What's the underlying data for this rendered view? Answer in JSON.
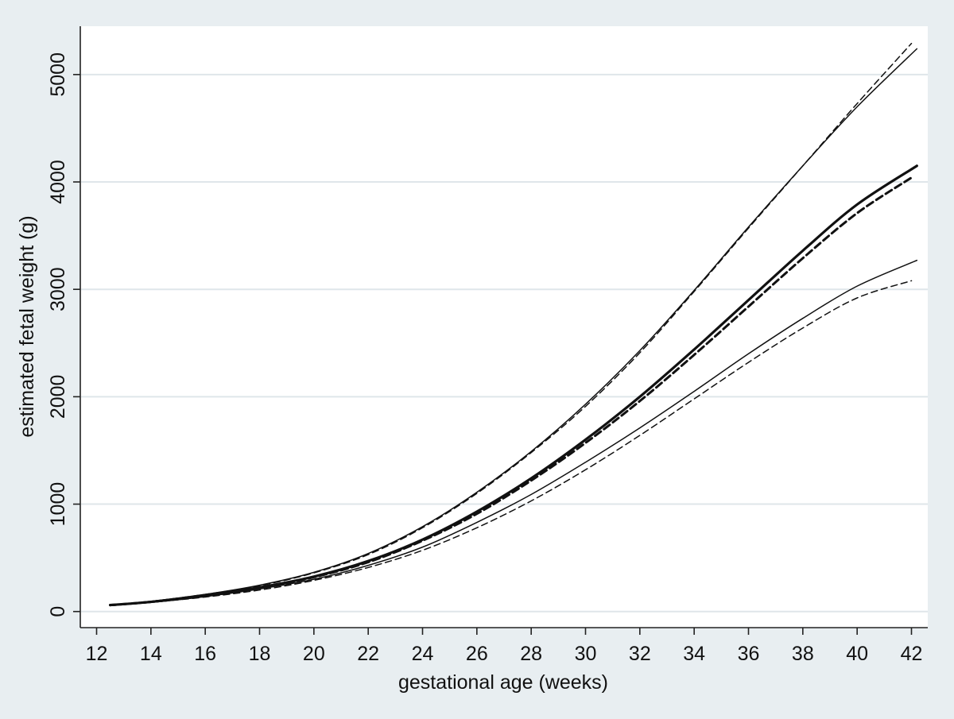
{
  "chart_data": {
    "type": "line",
    "title": "",
    "xlabel": "gestational age (weeks)",
    "ylabel": "estimated fetal weight (g)",
    "xlim": [
      11.4,
      42.6
    ],
    "ylim": [
      -150,
      5450
    ],
    "xticks": [
      12,
      14,
      16,
      18,
      20,
      22,
      24,
      26,
      28,
      30,
      32,
      34,
      36,
      38,
      40,
      42
    ],
    "xtick_labels": [
      "12",
      "14",
      "16",
      "18",
      "20",
      "22",
      "24",
      "26",
      "28",
      "30",
      "32",
      "34",
      "36",
      "38",
      "40",
      "42"
    ],
    "yticks": [
      0,
      1000,
      2000,
      3000,
      4000,
      5000
    ],
    "ytick_labels": [
      "0",
      "1000",
      "2000",
      "3000",
      "4000",
      "5000"
    ],
    "grid": true,
    "plot_background": "#ffffff",
    "outer_background": "#e8eef1",
    "line_color": "#111111",
    "series": [
      {
        "line_style": "solid-thick",
        "x": [
          12.5,
          14,
          16,
          18,
          20,
          22,
          24,
          26,
          28,
          30,
          32,
          34,
          36,
          38,
          40,
          42.2
        ],
        "y": [
          60,
          90,
          150,
          225,
          325,
          470,
          670,
          930,
          1240,
          1600,
          2000,
          2440,
          2900,
          3360,
          3790,
          4150
        ]
      },
      {
        "line_style": "dashed-thick",
        "x": [
          12.5,
          14,
          16,
          18,
          20,
          22,
          24,
          26,
          28,
          30,
          32,
          34,
          36,
          38,
          40,
          42
        ],
        "y": [
          60,
          90,
          145,
          220,
          320,
          460,
          660,
          910,
          1220,
          1570,
          1960,
          2390,
          2840,
          3290,
          3710,
          4040
        ]
      },
      {
        "line_style": "solid-thin",
        "x": [
          12.5,
          14,
          16,
          18,
          20,
          22,
          24,
          26,
          28,
          30,
          32,
          34,
          36,
          38,
          40,
          42.2
        ],
        "y": [
          60,
          95,
          160,
          245,
          365,
          540,
          790,
          1110,
          1490,
          1930,
          2430,
          2990,
          3580,
          4150,
          4700,
          5240
        ]
      },
      {
        "line_style": "dashed-thin",
        "x": [
          12.5,
          14,
          16,
          18,
          20,
          22,
          24,
          26,
          28,
          30,
          32,
          34,
          36,
          38,
          40,
          42
        ],
        "y": [
          60,
          95,
          160,
          240,
          360,
          530,
          780,
          1100,
          1480,
          1910,
          2410,
          2980,
          3570,
          4150,
          4730,
          5290
        ]
      },
      {
        "line_style": "solid-thin",
        "x": [
          12.5,
          14,
          16,
          18,
          20,
          22,
          24,
          26,
          28,
          30,
          32,
          34,
          36,
          38,
          40,
          42.2
        ],
        "y": [
          55,
          85,
          140,
          210,
          300,
          430,
          600,
          830,
          1090,
          1390,
          1710,
          2050,
          2400,
          2730,
          3030,
          3270
        ]
      },
      {
        "line_style": "dashed-thin",
        "x": [
          12.5,
          14,
          16,
          18,
          20,
          22,
          24,
          26,
          28,
          30,
          32,
          34,
          36,
          38,
          40,
          42
        ],
        "y": [
          55,
          85,
          135,
          200,
          290,
          410,
          570,
          780,
          1030,
          1320,
          1640,
          1980,
          2320,
          2640,
          2920,
          3080
        ]
      }
    ]
  }
}
